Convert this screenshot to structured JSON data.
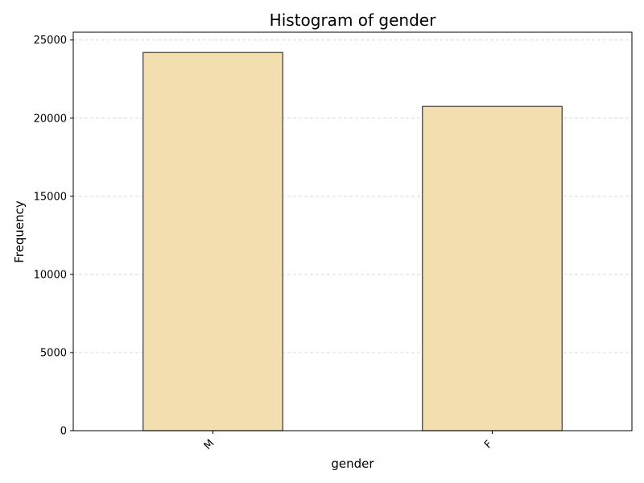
{
  "chart_data": {
    "type": "bar",
    "title": "Histogram of gender",
    "xlabel": "gender",
    "ylabel": "Frequency",
    "categories": [
      "M",
      "F"
    ],
    "values": [
      24200,
      20750
    ],
    "ylim": [
      0,
      25500
    ],
    "yticks": [
      0,
      5000,
      10000,
      15000,
      20000,
      25000
    ],
    "ytick_labels": [
      "0",
      "5000",
      "10000",
      "15000",
      "20000",
      "25000"
    ],
    "grid": "y-dashed",
    "bar_color": "#f3deb0",
    "bar_edge_color": "#3a3a3a",
    "grid_color": "#d9d9d9"
  }
}
